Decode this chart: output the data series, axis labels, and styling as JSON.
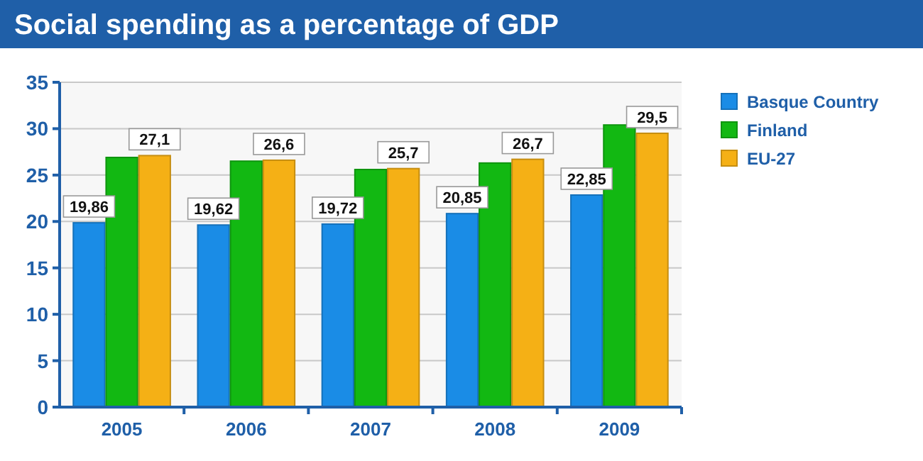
{
  "chart_data": {
    "type": "bar",
    "title": "Social spending as a percentage of GDP",
    "categories": [
      "2005",
      "2006",
      "2007",
      "2008",
      "2009"
    ],
    "series": [
      {
        "name": "Basque Country",
        "color": "#1a8ce6",
        "values": [
          19.86,
          19.62,
          19.72,
          20.85,
          22.85
        ],
        "value_labels": [
          "19,86",
          "19,62",
          "19,72",
          "20,85",
          "22,85"
        ]
      },
      {
        "name": "Finland",
        "color": "#12b812",
        "values": [
          26.9,
          26.5,
          25.6,
          26.3,
          30.4
        ]
      },
      {
        "name": "EU-27",
        "color": "#f5b015",
        "values": [
          27.1,
          26.6,
          25.7,
          26.7,
          29.5
        ],
        "value_labels": [
          "27,1",
          "26,6",
          "25,7",
          "26,7",
          "29,5"
        ]
      }
    ],
    "ylim": [
      0,
      35
    ],
    "yticks": [
      0,
      5,
      10,
      15,
      20,
      25,
      30,
      35
    ],
    "grid": "y",
    "legend": "right"
  }
}
